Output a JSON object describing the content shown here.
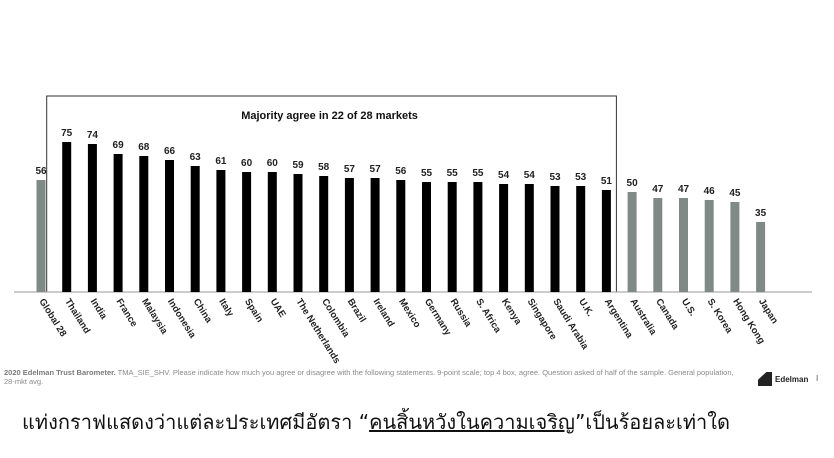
{
  "chart_data": {
    "type": "bar",
    "categories": [
      "Global 28",
      "Thailand",
      "India",
      "France",
      "Malaysia",
      "Indonesia",
      "China",
      "Italy",
      "Spain",
      "UAE",
      "The Netherlands",
      "Colombia",
      "Brazil",
      "Ireland",
      "Mexico",
      "Germany",
      "Russia",
      "S. Africa",
      "Kenya",
      "Singapore",
      "Saudi Arabia",
      "U.K.",
      "Argentina",
      "Australia",
      "Canada",
      "U.S.",
      "S. Korea",
      "Hong Kong",
      "Japan"
    ],
    "values": [
      56,
      75,
      74,
      69,
      68,
      66,
      63,
      61,
      60,
      60,
      59,
      58,
      57,
      57,
      56,
      55,
      55,
      55,
      54,
      54,
      53,
      53,
      51,
      50,
      47,
      47,
      46,
      45,
      35
    ],
    "highlight_group": "majority",
    "groups": [
      "global",
      "majority",
      "majority",
      "majority",
      "majority",
      "majority",
      "majority",
      "majority",
      "majority",
      "majority",
      "majority",
      "majority",
      "majority",
      "majority",
      "majority",
      "majority",
      "majority",
      "majority",
      "majority",
      "majority",
      "majority",
      "majority",
      "majority",
      "other",
      "other",
      "other",
      "other",
      "other",
      "other"
    ],
    "box_label": "Majority  agree in 22 of 28 markets",
    "title": "",
    "xlabel": "",
    "ylabel": "",
    "ylim": [
      0,
      100
    ],
    "grid": false,
    "colors": {
      "majority": "#000000",
      "other": "#7f8a86",
      "global": "#7f8a86"
    }
  },
  "footnote": {
    "source": "2020 Edelman Trust Barometer.",
    "text": " TMA_SIE_SHV.  Please indicate how much you agree or disagree with the following statements. 9-point scale; top 4 box, agree. Question asked of half of the sample. General population, 28-mkt avg."
  },
  "brand": {
    "name": "Edelman",
    "page": "I"
  },
  "caption": {
    "before": "แท่งกราฟแสดงว่าแต่ละประเทศมีอัตรา ",
    "open_quote": "“",
    "highlight": "คนสิ้นหวังในความเจริญ",
    "close_quote": "”",
    "after": "เป็นร้อยละเท่าใด"
  }
}
